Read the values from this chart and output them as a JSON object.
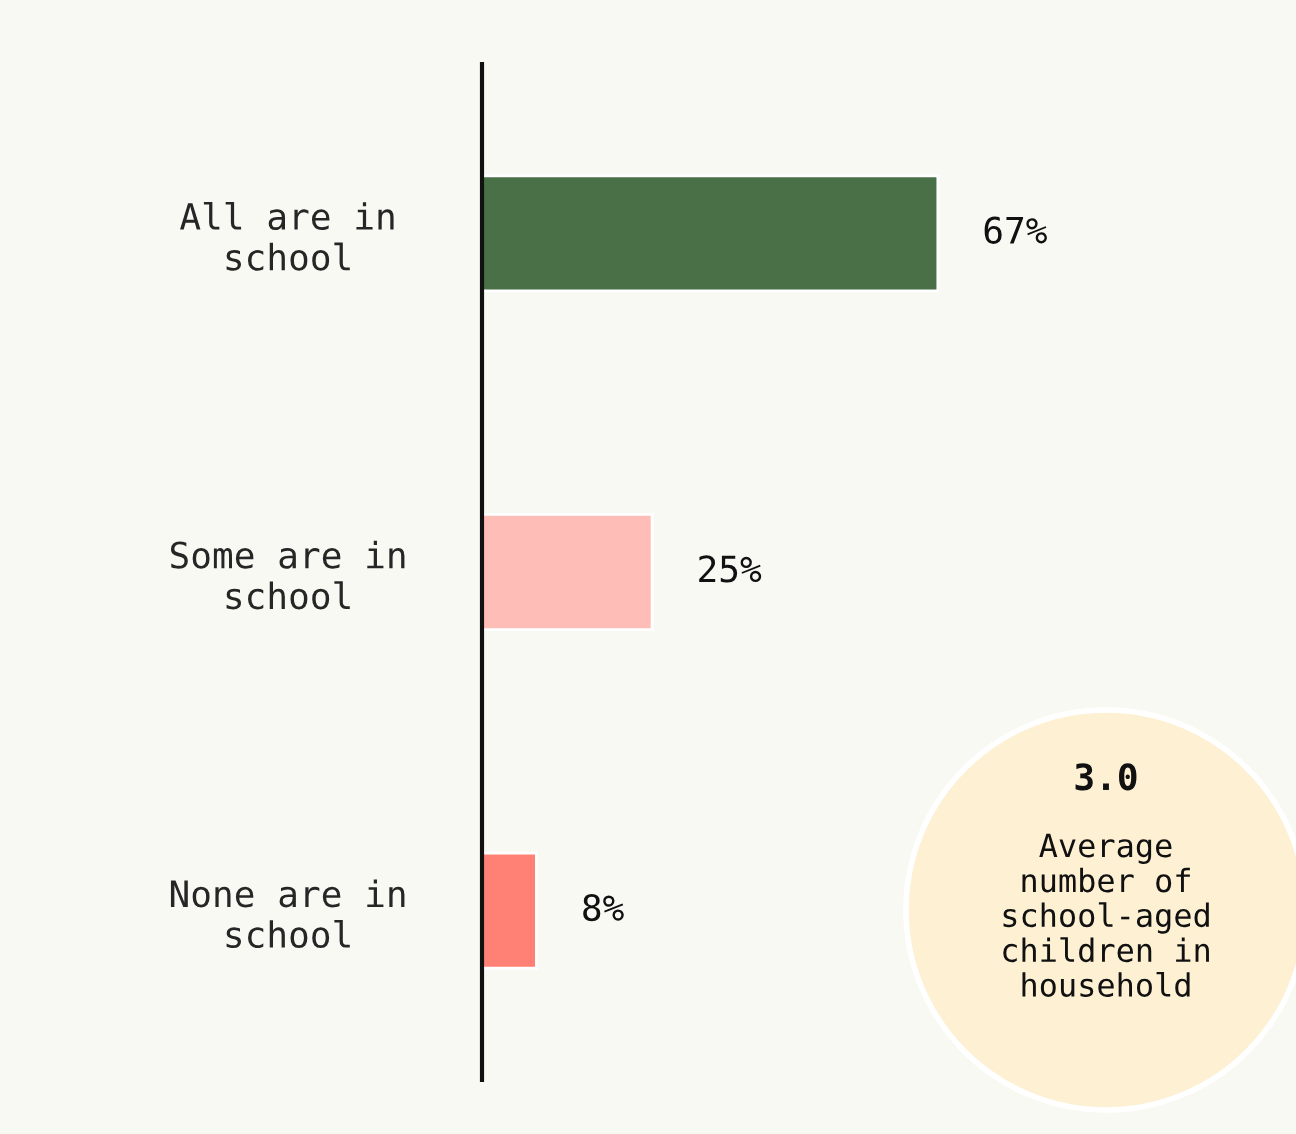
{
  "chart_data": {
    "type": "bar",
    "orientation": "horizontal",
    "categories": [
      "All are in\nschool",
      "Some are in\nschool",
      "None are in\nschool"
    ],
    "values": [
      67,
      25,
      8
    ],
    "colors": [
      "#4a7048",
      "#ffbdb8",
      "#ff8075"
    ],
    "value_labels": [
      "67%",
      "25%",
      "8%"
    ],
    "grid": false,
    "legend": false,
    "tick_labels": "y",
    "annotations": [
      "3.0",
      "Average\nnumber of\nschool-aged\nchildren in\nhousehold"
    ]
  }
}
